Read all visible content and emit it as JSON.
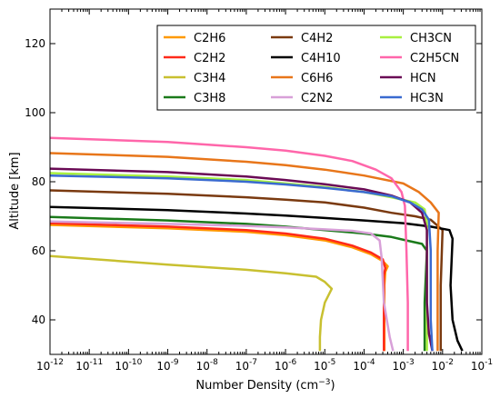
{
  "chart_data": {
    "type": "line",
    "xlabel": "Number Density (cm",
    "xlabel_sup": "−3",
    "xlabel_end": ")",
    "ylabel": "Altitude [km]",
    "xscale": "log",
    "xlim": [
      1e-12,
      0.1
    ],
    "ylim": [
      30,
      130
    ],
    "x_ticks": [
      {
        "value": 1e-12,
        "base": "10",
        "exp": "-12"
      },
      {
        "value": 1e-11,
        "base": "10",
        "exp": "-11"
      },
      {
        "value": 1e-10,
        "base": "10",
        "exp": "-10"
      },
      {
        "value": 1e-09,
        "base": "10",
        "exp": "-9"
      },
      {
        "value": 1e-08,
        "base": "10",
        "exp": "-8"
      },
      {
        "value": 1e-07,
        "base": "10",
        "exp": "-7"
      },
      {
        "value": 1e-06,
        "base": "10",
        "exp": "-6"
      },
      {
        "value": 1e-05,
        "base": "10",
        "exp": "-5"
      },
      {
        "value": 0.0001,
        "base": "10",
        "exp": "-4"
      },
      {
        "value": 0.001,
        "base": "10",
        "exp": "-3"
      },
      {
        "value": 0.01,
        "base": "10",
        "exp": "-2"
      },
      {
        "value": 0.1,
        "base": "10",
        "exp": "-1"
      }
    ],
    "y_ticks": [
      40,
      60,
      80,
      100,
      120
    ],
    "grid": false,
    "legend_position": "top-right",
    "series": [
      {
        "name": "C2H6",
        "color": "#ff9900",
        "points": [
          [
            1e-12,
            67.5
          ],
          [
            1e-09,
            66.5
          ],
          [
            1e-07,
            65.5
          ],
          [
            1e-06,
            64.5
          ],
          [
            1e-05,
            63.0
          ],
          [
            5e-05,
            61.0
          ],
          [
            0.00015,
            59.0
          ],
          [
            0.0003,
            57.0
          ],
          [
            0.0004,
            55.5
          ],
          [
            0.00035,
            54.0
          ],
          [
            0.00033,
            50
          ],
          [
            0.00033,
            40
          ],
          [
            0.00033,
            31
          ]
        ]
      },
      {
        "name": "C2H2",
        "color": "#ff2a1a",
        "points": [
          [
            1e-12,
            68.0
          ],
          [
            1e-09,
            67.0
          ],
          [
            1e-07,
            66.0
          ],
          [
            1e-06,
            65.0
          ],
          [
            1e-05,
            63.5
          ],
          [
            5e-05,
            61.5
          ],
          [
            0.00015,
            59.5
          ],
          [
            0.0003,
            57.5
          ],
          [
            0.00035,
            55.0
          ],
          [
            0.00032,
            53.0
          ],
          [
            0.00032,
            45
          ],
          [
            0.00032,
            31
          ]
        ]
      },
      {
        "name": "C3H4",
        "color": "#c8c030",
        "points": [
          [
            1e-12,
            58.5
          ],
          [
            1e-09,
            56.0
          ],
          [
            1e-07,
            54.5
          ],
          [
            1e-06,
            53.5
          ],
          [
            6e-06,
            52.5
          ],
          [
            1e-05,
            51.0
          ],
          [
            1.5e-05,
            49.0
          ],
          [
            1e-05,
            45.0
          ],
          [
            8e-06,
            40
          ],
          [
            7.5e-06,
            35
          ],
          [
            7.5e-06,
            31
          ]
        ]
      },
      {
        "name": "C3H8",
        "color": "#1a7a1a",
        "points": [
          [
            1e-12,
            69.8
          ],
          [
            1e-09,
            68.8
          ],
          [
            1e-07,
            67.8
          ],
          [
            1e-06,
            67.0
          ],
          [
            1e-05,
            66.0
          ],
          [
            0.0001,
            65.0
          ],
          [
            0.0005,
            64.0
          ],
          [
            0.0012,
            63.0
          ],
          [
            0.003,
            62.0
          ],
          [
            0.004,
            60
          ],
          [
            0.0035,
            45
          ],
          [
            0.0035,
            31
          ]
        ]
      },
      {
        "name": "C4H2",
        "color": "#7a3a10",
        "points": [
          [
            1e-12,
            77.5
          ],
          [
            1e-09,
            76.5
          ],
          [
            1e-07,
            75.5
          ],
          [
            1e-06,
            74.8
          ],
          [
            1e-05,
            74.0
          ],
          [
            0.0001,
            72.5
          ],
          [
            0.0005,
            71.0
          ],
          [
            0.002,
            70.0
          ],
          [
            0.005,
            69.0
          ],
          [
            0.01,
            66
          ],
          [
            0.009,
            50
          ],
          [
            0.009,
            31
          ]
        ]
      },
      {
        "name": "C4H10",
        "color": "#000000",
        "points": [
          [
            1e-12,
            72.7
          ],
          [
            1e-09,
            71.8
          ],
          [
            1e-07,
            70.8
          ],
          [
            1e-06,
            70.2
          ],
          [
            1e-05,
            69.5
          ],
          [
            0.0001,
            68.8
          ],
          [
            0.001,
            68.0
          ],
          [
            0.005,
            67.0
          ],
          [
            0.015,
            66.0
          ],
          [
            0.018,
            63.5
          ],
          [
            0.016,
            50
          ],
          [
            0.018,
            40
          ],
          [
            0.024,
            34
          ],
          [
            0.032,
            31
          ]
        ]
      },
      {
        "name": "C6H6",
        "color": "#e8761a",
        "points": [
          [
            1e-12,
            88.3
          ],
          [
            1e-09,
            87.2
          ],
          [
            1e-07,
            85.8
          ],
          [
            1e-06,
            84.8
          ],
          [
            1e-05,
            83.5
          ],
          [
            0.0001,
            81.8
          ],
          [
            0.001,
            79.5
          ],
          [
            0.0025,
            77.0
          ],
          [
            0.005,
            74.0
          ],
          [
            0.008,
            71.0
          ],
          [
            0.0075,
            60
          ],
          [
            0.0075,
            40
          ],
          [
            0.0075,
            31
          ]
        ]
      },
      {
        "name": "C2N2",
        "color": "#d8a0d8",
        "points": [
          [
            1e-12,
            68.5
          ],
          [
            1e-09,
            67.8
          ],
          [
            1e-07,
            67.2
          ],
          [
            1e-06,
            66.8
          ],
          [
            1e-05,
            66.2
          ],
          [
            5e-05,
            65.8
          ],
          [
            0.00015,
            65.0
          ],
          [
            0.00025,
            63.0
          ],
          [
            0.00028,
            58
          ],
          [
            0.00032,
            45
          ],
          [
            0.00045,
            35
          ],
          [
            0.00055,
            31
          ]
        ]
      },
      {
        "name": "CH3CN",
        "color": "#a8f040",
        "points": [
          [
            1e-12,
            82.5
          ],
          [
            1e-09,
            81.5
          ],
          [
            1e-07,
            80.5
          ],
          [
            1e-06,
            79.5
          ],
          [
            1e-05,
            78.5
          ],
          [
            0.0001,
            77.0
          ],
          [
            0.0005,
            75.5
          ],
          [
            0.002,
            74.0
          ],
          [
            0.0035,
            72.0
          ],
          [
            0.004,
            68
          ],
          [
            0.004,
            50
          ],
          [
            0.004,
            31
          ]
        ]
      },
      {
        "name": "C2H5CN",
        "color": "#ff66aa",
        "points": [
          [
            1e-12,
            92.7
          ],
          [
            1e-09,
            91.5
          ],
          [
            1e-07,
            90.0
          ],
          [
            1e-06,
            89.0
          ],
          [
            1e-05,
            87.5
          ],
          [
            5e-05,
            86.0
          ],
          [
            0.0002,
            83.5
          ],
          [
            0.0005,
            81.0
          ],
          [
            0.0009,
            77.0
          ],
          [
            0.0011,
            73.0
          ],
          [
            0.0012,
            60
          ],
          [
            0.0013,
            45
          ],
          [
            0.0013,
            31
          ]
        ]
      },
      {
        "name": "HCN",
        "color": "#6a0a55",
        "points": [
          [
            1e-12,
            83.8
          ],
          [
            1e-09,
            82.8
          ],
          [
            1e-07,
            81.5
          ],
          [
            1e-06,
            80.5
          ],
          [
            1e-05,
            79.3
          ],
          [
            0.0001,
            77.8
          ],
          [
            0.0005,
            76.0
          ],
          [
            0.0015,
            74.0
          ],
          [
            0.003,
            71.0
          ],
          [
            0.004,
            66
          ],
          [
            0.004,
            45
          ],
          [
            0.0045,
            36
          ],
          [
            0.0055,
            31
          ]
        ]
      },
      {
        "name": "HC3N",
        "color": "#3a6ad0",
        "points": [
          [
            1e-12,
            81.8
          ],
          [
            1e-09,
            81.0
          ],
          [
            1e-07,
            80.0
          ],
          [
            1e-06,
            79.2
          ],
          [
            1e-05,
            78.2
          ],
          [
            0.0001,
            77.0
          ],
          [
            0.0005,
            75.8
          ],
          [
            0.0015,
            74.0
          ],
          [
            0.003,
            72.0
          ],
          [
            0.0045,
            69
          ],
          [
            0.005,
            60
          ],
          [
            0.005,
            40
          ],
          [
            0.0055,
            31
          ]
        ]
      }
    ]
  }
}
